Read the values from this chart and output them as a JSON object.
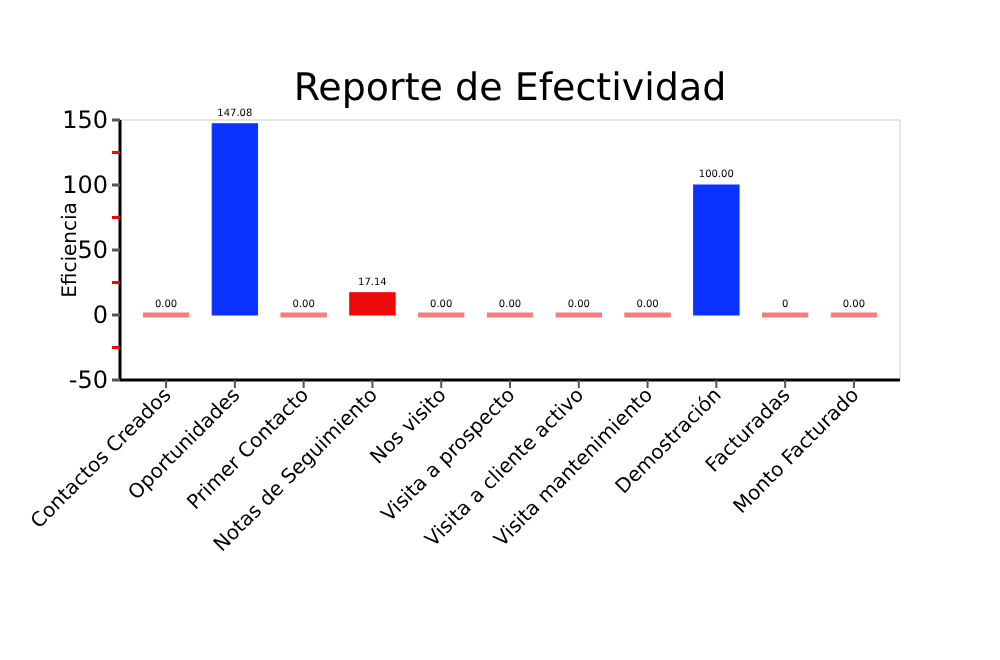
{
  "chart_data": {
    "type": "bar",
    "title": "Reporte de Efectividad",
    "ylabel": "Eficiencia",
    "categories": [
      "Contactos Creados",
      "Oportunidades",
      "Primer Contacto",
      "Notas de Seguimiento",
      "Nos visito",
      "Visita a prospecto",
      "Visita a cliente activo",
      "Visita mantenimiento",
      "Demostración",
      "Facturadas",
      "Monto Facturado"
    ],
    "values": [
      0,
      147.08,
      0,
      17.14,
      0,
      0,
      0,
      0,
      100,
      0,
      0
    ],
    "value_labels": [
      "0.00",
      "147.08",
      "0.00",
      "17.14",
      "0.00",
      "0.00",
      "0.00",
      "0.00",
      "100.00",
      "0",
      "0.00"
    ],
    "colors": [
      "#f08080",
      "#0a32ff",
      "#f08080",
      "#f00a0a",
      "#f08080",
      "#f08080",
      "#f08080",
      "#f08080",
      "#0a32ff",
      "#f08080",
      "#f08080"
    ],
    "ylim": [
      -50,
      150
    ],
    "yticks": [
      -50,
      {
        "value": -25,
        "label": null
      },
      0,
      {
        "value": 25,
        "label": null
      },
      50,
      {
        "value": 75,
        "label": null
      },
      100,
      {
        "value": 125,
        "label": null
      },
      150
    ],
    "grid": false
  }
}
